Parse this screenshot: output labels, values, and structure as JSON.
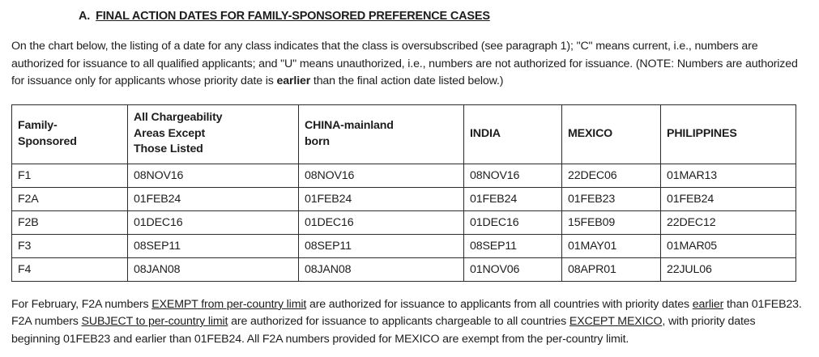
{
  "section": {
    "letter": "A.",
    "heading": "FINAL ACTION DATES FOR FAMILY-SPONSORED PREFERENCE CASES"
  },
  "intro": {
    "segments": [
      {
        "text": "On the chart below, the listing of a date for any class indicates that the class is oversubscribed (see paragraph 1); \"C\" means current, i.e., numbers are authorized for issuance to all qualified applicants; and \"U\" means unauthorized, i.e., numbers are not authorized for issuance. (NOTE: Numbers are authorized for issuance only for applicants whose priority date is "
      },
      {
        "text": "earlier",
        "bold": true
      },
      {
        "text": " than the final action date listed below.)"
      }
    ]
  },
  "table": {
    "headers": [
      "Family-\nSponsored",
      "All Chargeability\nAreas Except\nThose Listed",
      "CHINA-mainland\nborn",
      "INDIA",
      "MEXICO",
      "PHILIPPINES"
    ],
    "rows": [
      {
        "category": "F1",
        "values": [
          "08NOV16",
          "08NOV16",
          "08NOV16",
          "22DEC06",
          "01MAR13"
        ]
      },
      {
        "category": "F2A",
        "values": [
          "01FEB24",
          "01FEB24",
          "01FEB24",
          "01FEB23",
          "01FEB24"
        ]
      },
      {
        "category": "F2B",
        "values": [
          "01DEC16",
          "01DEC16",
          "01DEC16",
          "15FEB09",
          "22DEC12"
        ]
      },
      {
        "category": "F3",
        "values": [
          "08SEP11",
          "08SEP11",
          "08SEP11",
          "01MAY01",
          "01MAR05"
        ]
      },
      {
        "category": "F4",
        "values": [
          "08JAN08",
          "08JAN08",
          "01NOV06",
          "08APR01",
          "22JUL06"
        ]
      }
    ]
  },
  "footnote": {
    "segments": [
      {
        "text": "For February, F2A numbers "
      },
      {
        "text": "EXEMPT from per-country limit",
        "underline": true
      },
      {
        "text": " are authorized for issuance to applicants from all countries with priority dates "
      },
      {
        "text": "earlier",
        "underline": true
      },
      {
        "text": " than 01FEB23. F2A numbers "
      },
      {
        "text": "SUBJECT to per-country limit",
        "underline": true
      },
      {
        "text": " are authorized for issuance to applicants chargeable to all countries "
      },
      {
        "text": "EXCEPT MEXICO",
        "underline": true
      },
      {
        "text": ", with priority dates beginning 01FEB23 and earlier than 01FEB24. All F2A numbers provided for MEXICO are exempt from the per-country limit."
      }
    ]
  },
  "colors": {
    "text": "#1d1d1d",
    "border": "#2b2b2b",
    "background": "#ffffff"
  }
}
